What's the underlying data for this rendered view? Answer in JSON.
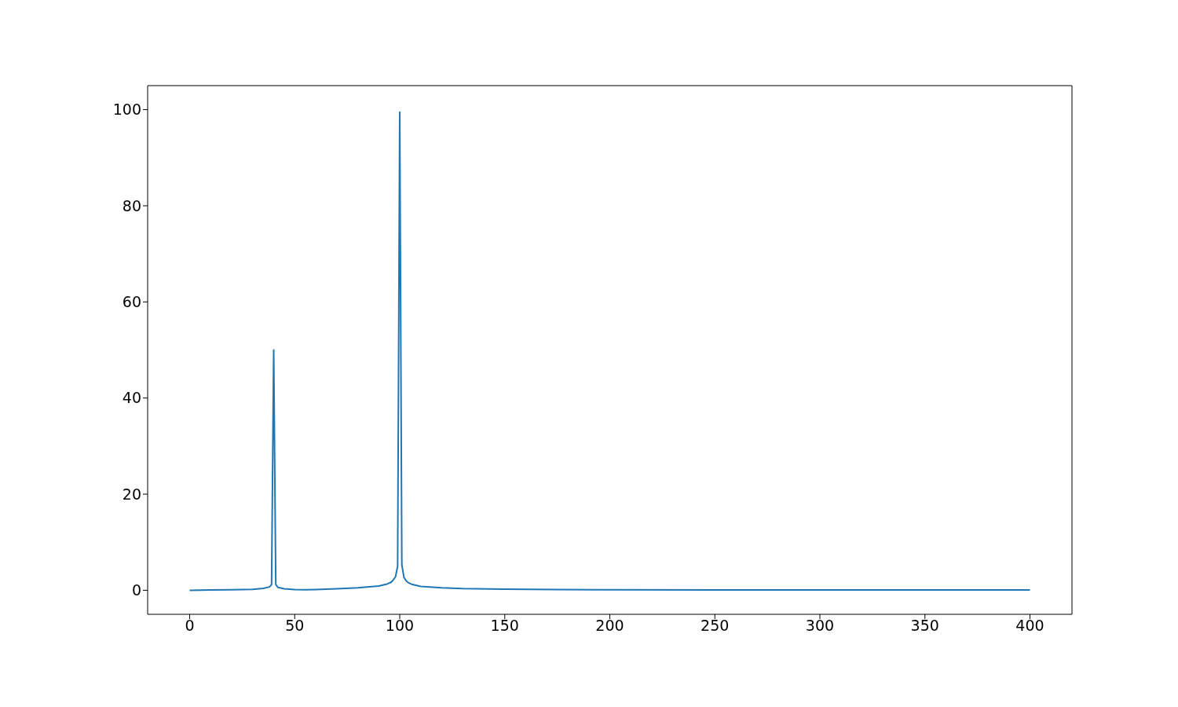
{
  "chart_data": {
    "type": "line",
    "xlim": [
      -20,
      420
    ],
    "ylim": [
      -5,
      105
    ],
    "xticks": [
      0,
      50,
      100,
      150,
      200,
      250,
      300,
      350,
      400
    ],
    "yticks": [
      0,
      20,
      40,
      60,
      80,
      100
    ],
    "grid": false,
    "marker": "none",
    "line_style": "solid",
    "series": [
      {
        "color": "#1f77b4",
        "x": [
          0,
          10,
          20,
          30,
          35,
          38,
          39,
          40,
          41,
          42,
          45,
          50,
          55,
          60,
          70,
          80,
          90,
          94,
          96,
          97,
          98,
          99,
          100,
          101,
          102,
          103,
          104,
          106,
          110,
          120,
          130,
          150,
          175,
          200,
          250,
          300,
          350,
          400
        ],
        "values": [
          0,
          0.05,
          0.1,
          0.2,
          0.4,
          0.7,
          1.2,
          50,
          1.2,
          0.6,
          0.3,
          0.15,
          0.1,
          0.15,
          0.3,
          0.5,
          0.9,
          1.3,
          1.7,
          2.2,
          2.8,
          5,
          99.5,
          5.3,
          2.7,
          2,
          1.6,
          1.2,
          0.8,
          0.5,
          0.35,
          0.25,
          0.15,
          0.12,
          0.08,
          0.06,
          0.05,
          0.05
        ]
      }
    ]
  }
}
